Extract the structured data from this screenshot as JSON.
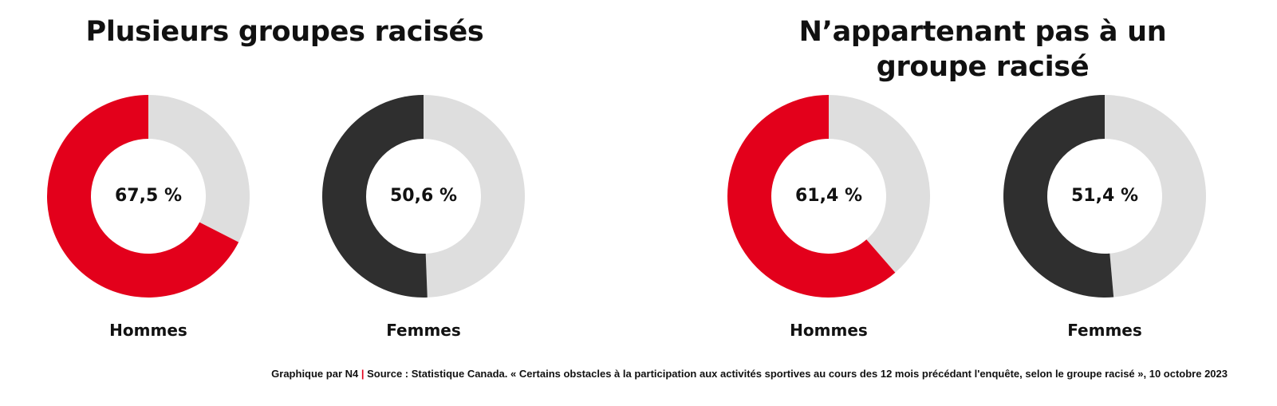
{
  "colors": {
    "accent_red": "#e3001b",
    "dark": "#2f2f2f",
    "remainder_gray": "#dedede"
  },
  "chart_data": [
    {
      "type": "pie",
      "title": "Plusieurs groupes racisés",
      "panels": [
        {
          "category": "Hommes",
          "value": 67.5,
          "label": "67,5 %",
          "color": "#e3001b"
        },
        {
          "category": "Femmes",
          "value": 50.6,
          "label": "50,6 %",
          "color": "#2f2f2f"
        }
      ]
    },
    {
      "type": "pie",
      "title": "N’appartenant pas à un groupe racisé",
      "panels": [
        {
          "category": "Hommes",
          "value": 61.4,
          "label": "61,4 %",
          "color": "#e3001b"
        },
        {
          "category": "Femmes",
          "value": 51.4,
          "label": "51,4 %",
          "color": "#2f2f2f"
        }
      ]
    }
  ],
  "footer": {
    "credit": "Graphique par N4",
    "separator": "|",
    "source": "Source : Statistique Canada. « Certains obstacles à la participation aux activités sportives au cours des 12 mois précédant l'enquête, selon le groupe racisé », 10 octobre 2023"
  }
}
